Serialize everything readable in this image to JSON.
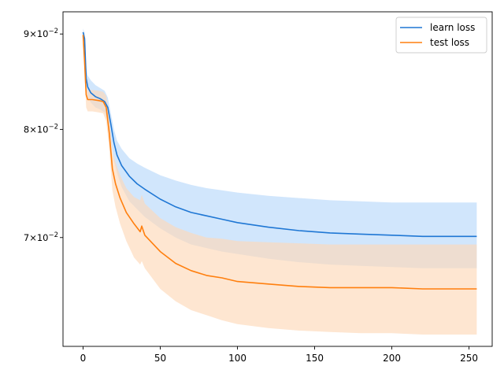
{
  "chart_data": {
    "type": "line",
    "title": "",
    "xlabel": "",
    "ylabel": "",
    "y_scale": "log",
    "xlim": [
      -13,
      265
    ],
    "ylim": [
      0.0612,
      0.0925
    ],
    "x_ticks": [
      0,
      50,
      100,
      150,
      200,
      250
    ],
    "y_ticks": [
      {
        "value": 0.09,
        "mantissa": "9",
        "base": "10",
        "exponent": "−2"
      },
      {
        "value": 0.08,
        "mantissa": "8",
        "base": "10",
        "exponent": "−2"
      },
      {
        "value": 0.07,
        "mantissa": "7",
        "base": "10",
        "exponent": "−2"
      }
    ],
    "grid": false,
    "legend_position": "top-right",
    "series": [
      {
        "name": "learn loss",
        "color": "#1f77d4",
        "band_color": "#b8d8fb",
        "points": [
          {
            "x": 0,
            "y": 0.0902,
            "lo": 0.0898,
            "hi": 0.0906
          },
          {
            "x": 1,
            "y": 0.0895,
            "lo": 0.0889,
            "hi": 0.0901
          },
          {
            "x": 2,
            "y": 0.0852,
            "lo": 0.0843,
            "hi": 0.0864
          },
          {
            "x": 3,
            "y": 0.0843,
            "lo": 0.0833,
            "hi": 0.0855
          },
          {
            "x": 5,
            "y": 0.0837,
            "lo": 0.0827,
            "hi": 0.085
          },
          {
            "x": 8,
            "y": 0.0833,
            "lo": 0.0822,
            "hi": 0.0845
          },
          {
            "x": 11,
            "y": 0.0831,
            "lo": 0.082,
            "hi": 0.0842
          },
          {
            "x": 14,
            "y": 0.0828,
            "lo": 0.0817,
            "hi": 0.0839
          },
          {
            "x": 16,
            "y": 0.0822,
            "lo": 0.0809,
            "hi": 0.0832
          },
          {
            "x": 18,
            "y": 0.0805,
            "lo": 0.0789,
            "hi": 0.0816
          },
          {
            "x": 20,
            "y": 0.0787,
            "lo": 0.077,
            "hi": 0.08
          },
          {
            "x": 22,
            "y": 0.0775,
            "lo": 0.0758,
            "hi": 0.0789
          },
          {
            "x": 25,
            "y": 0.0765,
            "lo": 0.0745,
            "hi": 0.0781
          },
          {
            "x": 30,
            "y": 0.0755,
            "lo": 0.0732,
            "hi": 0.0772
          },
          {
            "x": 35,
            "y": 0.0748,
            "lo": 0.0725,
            "hi": 0.0767
          },
          {
            "x": 40,
            "y": 0.0743,
            "lo": 0.0718,
            "hi": 0.0763
          },
          {
            "x": 50,
            "y": 0.0734,
            "lo": 0.0708,
            "hi": 0.0756
          },
          {
            "x": 60,
            "y": 0.0727,
            "lo": 0.07,
            "hi": 0.0751
          },
          {
            "x": 70,
            "y": 0.0722,
            "lo": 0.0694,
            "hi": 0.0747
          },
          {
            "x": 80,
            "y": 0.0719,
            "lo": 0.0691,
            "hi": 0.0744
          },
          {
            "x": 90,
            "y": 0.0716,
            "lo": 0.0688,
            "hi": 0.0742
          },
          {
            "x": 100,
            "y": 0.0713,
            "lo": 0.0686,
            "hi": 0.074
          },
          {
            "x": 120,
            "y": 0.0709,
            "lo": 0.0682,
            "hi": 0.0737
          },
          {
            "x": 140,
            "y": 0.0706,
            "lo": 0.0679,
            "hi": 0.0735
          },
          {
            "x": 160,
            "y": 0.0704,
            "lo": 0.0677,
            "hi": 0.0733
          },
          {
            "x": 180,
            "y": 0.0703,
            "lo": 0.0676,
            "hi": 0.0732
          },
          {
            "x": 200,
            "y": 0.0702,
            "lo": 0.0675,
            "hi": 0.0731
          },
          {
            "x": 220,
            "y": 0.0701,
            "lo": 0.0674,
            "hi": 0.0731
          },
          {
            "x": 240,
            "y": 0.0701,
            "lo": 0.0674,
            "hi": 0.0731
          },
          {
            "x": 255,
            "y": 0.0701,
            "lo": 0.0674,
            "hi": 0.0731
          }
        ]
      },
      {
        "name": "test loss",
        "color": "#ff7f0e",
        "band_color": "#fdd9b8",
        "points": [
          {
            "x": 0,
            "y": 0.0899,
            "lo": 0.0894,
            "hi": 0.0904
          },
          {
            "x": 1,
            "y": 0.087,
            "lo": 0.0858,
            "hi": 0.088
          },
          {
            "x": 2,
            "y": 0.0835,
            "lo": 0.0822,
            "hi": 0.0845
          },
          {
            "x": 3,
            "y": 0.083,
            "lo": 0.0818,
            "hi": 0.084
          },
          {
            "x": 6,
            "y": 0.083,
            "lo": 0.0818,
            "hi": 0.084
          },
          {
            "x": 10,
            "y": 0.0829,
            "lo": 0.0817,
            "hi": 0.0839
          },
          {
            "x": 13,
            "y": 0.0828,
            "lo": 0.0816,
            "hi": 0.0838
          },
          {
            "x": 15,
            "y": 0.0822,
            "lo": 0.0808,
            "hi": 0.0834
          },
          {
            "x": 17,
            "y": 0.0796,
            "lo": 0.078,
            "hi": 0.0811
          },
          {
            "x": 19,
            "y": 0.0762,
            "lo": 0.0742,
            "hi": 0.0778
          },
          {
            "x": 21,
            "y": 0.0748,
            "lo": 0.0727,
            "hi": 0.0768
          },
          {
            "x": 24,
            "y": 0.0735,
            "lo": 0.0712,
            "hi": 0.0756
          },
          {
            "x": 28,
            "y": 0.0722,
            "lo": 0.0697,
            "hi": 0.0744
          },
          {
            "x": 33,
            "y": 0.0712,
            "lo": 0.0683,
            "hi": 0.0736
          },
          {
            "x": 37,
            "y": 0.0705,
            "lo": 0.0677,
            "hi": 0.0733
          },
          {
            "x": 38,
            "y": 0.071,
            "lo": 0.068,
            "hi": 0.0738
          },
          {
            "x": 40,
            "y": 0.0702,
            "lo": 0.0674,
            "hi": 0.073
          },
          {
            "x": 50,
            "y": 0.0688,
            "lo": 0.0657,
            "hi": 0.0717
          },
          {
            "x": 60,
            "y": 0.0678,
            "lo": 0.0647,
            "hi": 0.0709
          },
          {
            "x": 70,
            "y": 0.0672,
            "lo": 0.064,
            "hi": 0.0704
          },
          {
            "x": 80,
            "y": 0.0668,
            "lo": 0.0636,
            "hi": 0.07
          },
          {
            "x": 90,
            "y": 0.0666,
            "lo": 0.0632,
            "hi": 0.0699
          },
          {
            "x": 100,
            "y": 0.0663,
            "lo": 0.0629,
            "hi": 0.0697
          },
          {
            "x": 120,
            "y": 0.0661,
            "lo": 0.0626,
            "hi": 0.0696
          },
          {
            "x": 140,
            "y": 0.0659,
            "lo": 0.0624,
            "hi": 0.0695
          },
          {
            "x": 160,
            "y": 0.0658,
            "lo": 0.0623,
            "hi": 0.0694
          },
          {
            "x": 180,
            "y": 0.0658,
            "lo": 0.0622,
            "hi": 0.0694
          },
          {
            "x": 200,
            "y": 0.0658,
            "lo": 0.0622,
            "hi": 0.0694
          },
          {
            "x": 220,
            "y": 0.0657,
            "lo": 0.0621,
            "hi": 0.0694
          },
          {
            "x": 240,
            "y": 0.0657,
            "lo": 0.0621,
            "hi": 0.0694
          },
          {
            "x": 255,
            "y": 0.0657,
            "lo": 0.0621,
            "hi": 0.0694
          }
        ]
      }
    ]
  }
}
